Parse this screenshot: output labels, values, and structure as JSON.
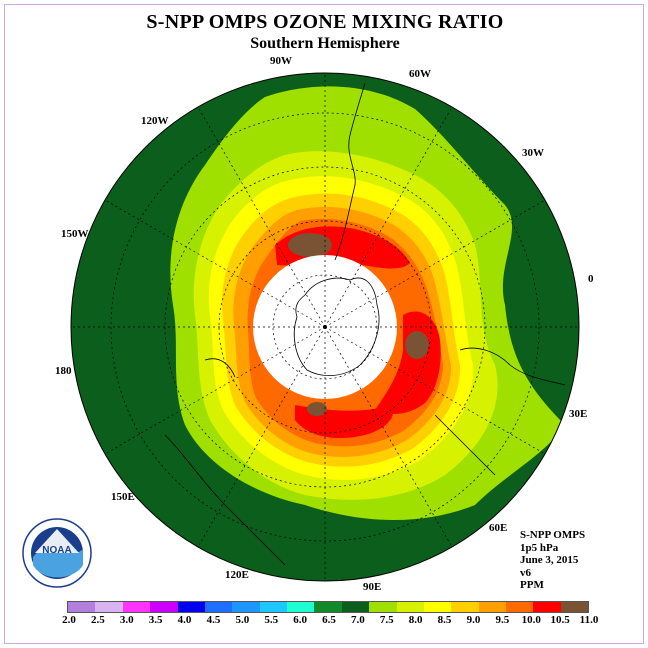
{
  "title": "S-NPP OMPS OZONE MIXING RATIO",
  "subtitle": "Southern Hemisphere",
  "logo_text": "NOAA",
  "info": {
    "instrument": "S-NPP OMPS",
    "level": "1p5 hPa",
    "date": "June 3, 2015",
    "version": "v6",
    "units": "PPM"
  },
  "longitude_labels": [
    "90W",
    "60W",
    "30W",
    "0",
    "30E",
    "60E",
    "90E",
    "120E",
    "150E",
    "180",
    "150W",
    "120W"
  ],
  "colorbar": {
    "ticks": [
      "2.0",
      "2.5",
      "3.0",
      "3.5",
      "4.0",
      "4.5",
      "5.0",
      "5.5",
      "6.0",
      "6.5",
      "7.0",
      "7.5",
      "8.0",
      "8.5",
      "9.0",
      "9.5",
      "10.0",
      "10.5",
      "11.0"
    ],
    "colors": [
      "#b27fdf",
      "#d9b3f0",
      "#ff33ff",
      "#cc00ff",
      "#0000ee",
      "#1e6eff",
      "#1e96ff",
      "#1ec8ff",
      "#1effd2",
      "#138a2a",
      "#0b5e1c",
      "#9fe000",
      "#d6f200",
      "#ffff00",
      "#ffd000",
      "#ffa000",
      "#ff6a00",
      "#ff0000",
      "#7a5234"
    ]
  }
}
